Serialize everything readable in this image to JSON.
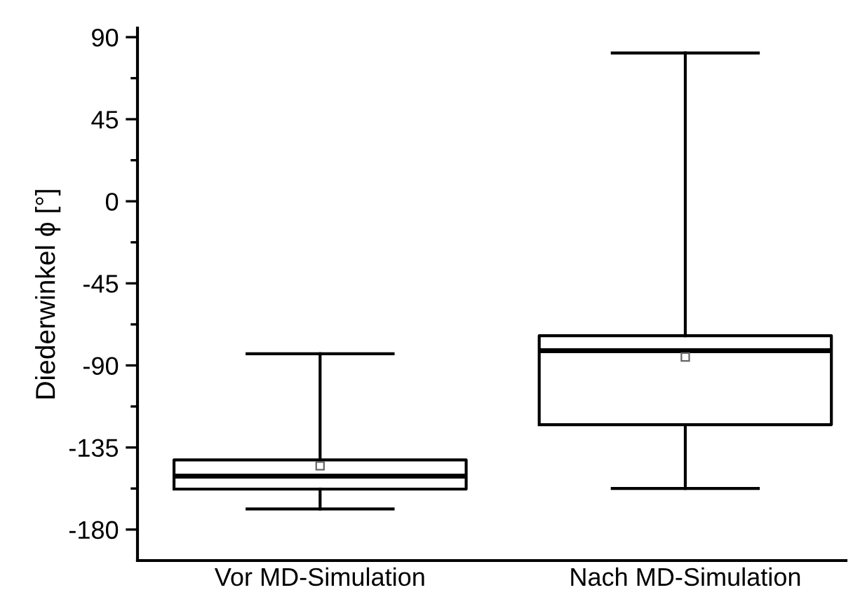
{
  "chart_data": {
    "type": "box",
    "ylabel": "Diederwinkel ϕ [°]",
    "categories": [
      "Vor MD-Simulation",
      "Nach MD-Simulation"
    ],
    "boxes": [
      {
        "low": -168.7,
        "q1": -157.8,
        "median": -150.7,
        "q3": -141.8,
        "high": -83.6,
        "mean": -145.1
      },
      {
        "low": -157.5,
        "q1": -122.5,
        "median": -81.9,
        "q3": -73.7,
        "high": 81.3,
        "mean": -85.4
      }
    ],
    "color": "#000000",
    "ylim": [
      -197,
      95
    ],
    "yticks": [
      90,
      {
        "value": 67.5,
        "label": null
      },
      45,
      {
        "value": 22.5,
        "label": null
      },
      0,
      {
        "value": -22.5,
        "label": null
      },
      -45,
      {
        "value": -67.5,
        "label": null
      },
      -90,
      {
        "value": -112.5,
        "label": null
      },
      -135,
      {
        "value": -157.5,
        "label": null
      },
      -180
    ],
    "grid": false
  }
}
